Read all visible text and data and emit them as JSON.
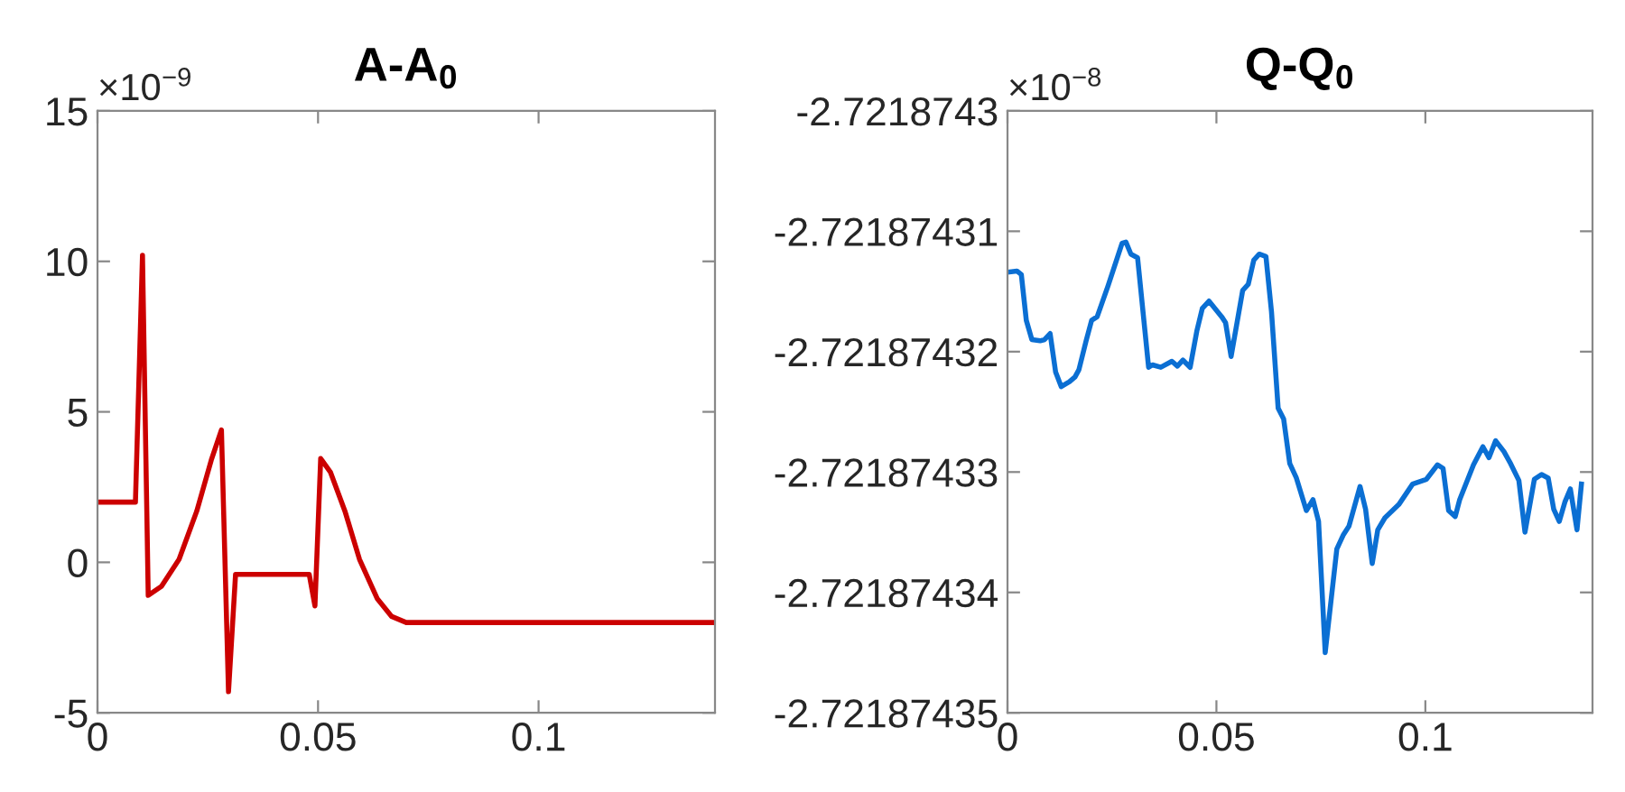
{
  "chart_data": [
    {
      "type": "line",
      "title": "A-A$_{0}$",
      "annotations": [
        "×10$^{−9}$"
      ],
      "x": [
        0,
        0.0086,
        0.0102,
        0.0115,
        0.0145,
        0.0185,
        0.0225,
        0.0258,
        0.0281,
        0.0297,
        0.0313,
        0.048,
        0.0493,
        0.0506,
        0.0528,
        0.0561,
        0.0594,
        0.0634,
        0.0667,
        0.07,
        0.14
      ],
      "series": [
        {
          "color": "#cc0000",
          "values": [
            2,
            2,
            10.2,
            -1.1,
            -0.8,
            0.1,
            1.7,
            3.4,
            4.4,
            -4.3,
            -0.4,
            -0.4,
            -1.45,
            3.45,
            3.0,
            1.7,
            0.1,
            -1.2,
            -1.8,
            -2,
            -2
          ]
        }
      ],
      "xlim": [
        0,
        0.14
      ],
      "ylim": [
        -5,
        15
      ],
      "xticks": [
        0,
        0.05,
        0.1
      ],
      "yticks": [
        -5,
        0,
        5,
        10,
        15
      ]
    },
    {
      "type": "line",
      "title": "Q-Q$_{0}$",
      "annotations": [
        "×10$^{−8}$"
      ],
      "x": [
        0,
        0.00225,
        0.00331,
        0.0045,
        0.00583,
        0.00781,
        0.00887,
        0.0102,
        0.01152,
        0.01285,
        0.01483,
        0.01616,
        0.01709,
        0.01881,
        0.02013,
        0.02146,
        0.0241,
        0.02609,
        0.02742,
        0.02834,
        0.02954,
        0.03113,
        0.03377,
        0.0347,
        0.03669,
        0.03934,
        0.04066,
        0.04199,
        0.04371,
        0.0453,
        0.04662,
        0.04821,
        0.05126,
        0.05219,
        0.05351,
        0.05629,
        0.05762,
        0.05894,
        0.06026,
        0.06185,
        0.06318,
        0.06477,
        0.06609,
        0.06755,
        0.06914,
        0.07152,
        0.07311,
        0.07444,
        0.07603,
        0.07881,
        0.0804,
        0.08172,
        0.08437,
        0.0857,
        0.08728,
        0.08861,
        0.09033,
        0.09364,
        0.09695,
        0.10026,
        0.10291,
        0.10424,
        0.10556,
        0.10715,
        0.10821,
        0.11152,
        0.11377,
        0.11523,
        0.11682,
        0.11881,
        0.1204,
        0.12238,
        0.12384,
        0.12609,
        0.12781,
        0.1294,
        0.13073,
        0.13205,
        0.13338,
        0.1347,
        0.13629,
        0.13735
      ],
      "series": [
        {
          "color": "#0b6fd3",
          "values": [
            -2.7218743134,
            -2.7218743133,
            -2.7218743136,
            -2.7218743174,
            -2.721874319,
            -2.7218743191,
            -2.721874319,
            -2.7218743185,
            -2.7218743217,
            -2.7218743229,
            -2.7218743225,
            -2.7218743221,
            -2.7218743215,
            -2.7218743191,
            -2.7218743174,
            -2.7218743171,
            -2.7218743145,
            -2.7218743124,
            -2.721874311,
            -2.7218743109,
            -2.7218743119,
            -2.7218743122,
            -2.7218743213,
            -2.7218743211,
            -2.7218743213,
            -2.7218743208,
            -2.7218743212,
            -2.7218743207,
            -2.7218743213,
            -2.7218743183,
            -2.7218743164,
            -2.7218743158,
            -2.7218743171,
            -2.7218743176,
            -2.7218743204,
            -2.7218743149,
            -2.7218743144,
            -2.7218743124,
            -2.7218743119,
            -2.7218743121,
            -2.7218743167,
            -2.7218743247,
            -2.7218743256,
            -2.7218743293,
            -2.7218743305,
            -2.7218743332,
            -2.7218743323,
            -2.7218743341,
            -2.721874345,
            -2.7218743364,
            -2.7218743352,
            -2.7218743345,
            -2.7218743312,
            -2.7218743331,
            -2.7218743376,
            -2.7218743348,
            -2.7218743338,
            -2.7218743327,
            -2.721874331,
            -2.7218743306,
            -2.7218743294,
            -2.7218743297,
            -2.7218743332,
            -2.7218743337,
            -2.7218743323,
            -2.7218743294,
            -2.7218743279,
            -2.7218743288,
            -2.7218743274,
            -2.7218743283,
            -2.7218743293,
            -2.7218743307,
            -2.721874335,
            -2.7218743306,
            -2.7218743302,
            -2.7218743305,
            -2.7218743331,
            -2.7218743341,
            -2.7218743325,
            -2.7218743314,
            -2.7218743348,
            -2.721874331
          ]
        }
      ],
      "xlim": [
        0,
        0.14
      ],
      "ylim": [
        -2.72187435,
        -2.7218743
      ],
      "xticks": [
        0,
        0.05,
        0.1
      ],
      "yticks": [
        -2.72187435,
        -2.72187434,
        -2.72187433,
        -2.72187432,
        -2.72187431,
        -2.7218743
      ]
    }
  ]
}
